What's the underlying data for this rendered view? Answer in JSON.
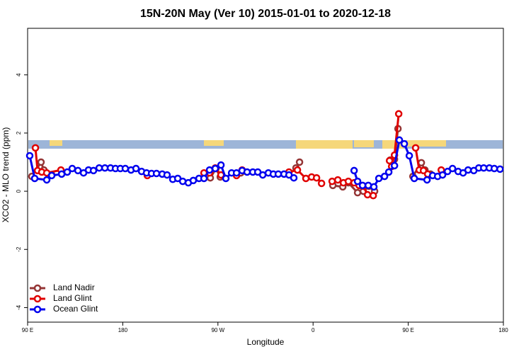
{
  "chart_data": {
    "type": "line",
    "title": "15N-20N May (Ver 10)   2015-01-01 to 2020-12-18",
    "x_label": "Longitude",
    "y_label": "XCO2 - MLO trend (ppm)",
    "xlim": [
      90,
      540
    ],
    "xticks": [
      {
        "value": 90,
        "label": "90 E"
      },
      180,
      {
        "value": 270,
        "label": "90 W"
      },
      {
        "value": 360,
        "label": "0"
      },
      {
        "value": 450,
        "label": "90 E"
      },
      {
        "value": 540,
        "label": "180"
      }
    ],
    "ylim": [
      -4.5,
      5.6
    ],
    "yticks": [
      -4,
      -2,
      0,
      2,
      4
    ],
    "legend": "bottom-left",
    "series": [
      {
        "name": "Land Nadir",
        "color": "#943535",
        "x": [
          94.0,
          102.7,
          105.4,
          112.8,
          190,
          262.8,
          268.2,
          272.2,
          282,
          291.6,
          320,
          343.8,
          347.2,
          360,
          378.7,
          388.1,
          393.4,
          402.1,
          407.5,
          412.8,
          418.2,
          425,
          432.9,
          437.0,
          440.3,
          447,
          454.4,
          462.4,
          465.8,
          471.1
        ],
        "values": [
          0.51,
          1.0,
          0.73,
          0.56,
          null,
          0.46,
          0.78,
          0.49,
          null,
          0.63,
          null,
          0.8,
          1.0,
          null,
          0.2,
          0.15,
          0.29,
          -0.05,
          0.0,
          0.17,
          0.0,
          null,
          1.07,
          1.1,
          2.15,
          null,
          0.51,
          0.98,
          0.73,
          0.59
        ]
      },
      {
        "name": "Land Glint",
        "color": "#e00000",
        "x": [
          97.4,
          99.4,
          103.4,
          108.1,
          121.5,
          160,
          203.2,
          230,
          256.8,
          262.1,
          267.5,
          272.9,
          280,
          287.6,
          292.9,
          315,
          337.2,
          345.2,
          353.2,
          358.6,
          363.3,
          368.0,
          373,
          378.0,
          383.4,
          388.7,
          393.4,
          398.8,
          403.5,
          407.5,
          411.5,
          416.9,
          425,
          432.3,
          434.3,
          437.0,
          441.0,
          449,
          457.0,
          460.4,
          464.4,
          468.4,
          475,
          481.2
        ],
        "values": [
          1.49,
          0.71,
          0.66,
          0.63,
          0.73,
          null,
          0.54,
          null,
          0.63,
          0.63,
          0.8,
          0.56,
          null,
          0.54,
          0.73,
          null,
          0.66,
          0.73,
          0.44,
          0.49,
          0.46,
          0.27,
          null,
          0.34,
          0.39,
          0.29,
          0.34,
          0.29,
          0.2,
          0.17,
          -0.12,
          -0.15,
          null,
          1.05,
          0.85,
          1.24,
          2.66,
          null,
          1.49,
          0.73,
          0.71,
          0.59,
          null,
          0.73
        ]
      },
      {
        "name": "Ocean Glint",
        "color": "#0000ee",
        "x": [
          92.0,
          96.7,
          108.1,
          112.8,
          122.2,
          127.5,
          132.2,
          137.6,
          142.9,
          147.6,
          152.3,
          157.7,
          163.1,
          168.4,
          173.1,
          177.7,
          182.4,
          187.8,
          192.5,
          197.8,
          202.5,
          207.2,
          211.9,
          217.3,
          221.9,
          227.3,
          232.0,
          236.7,
          242.0,
          246.7,
          252.1,
          256.8,
          262.1,
          267.5,
          272.9,
          277.5,
          282.9,
          287.6,
          292.9,
          297.6,
          303.0,
          307.7,
          312.4,
          317.7,
          322.4,
          327.1,
          332.5,
          337.2,
          341.8,
          370,
          398.8,
          402.1,
          406.8,
          412.2,
          417.5,
          422.2,
          427.6,
          431.6,
          437.0,
          441.6,
          446.3,
          451.0,
          455.7,
          467.8,
          473.1,
          477.8,
          482.5,
          487.2,
          491.9,
          497.2,
          501.9,
          506.6,
          512.0,
          516.7,
          521.4,
          526.7,
          531.4,
          536.8
        ],
        "values": [
          1.22,
          0.44,
          0.39,
          0.54,
          0.59,
          0.66,
          0.78,
          0.71,
          0.63,
          0.73,
          0.71,
          0.8,
          0.8,
          0.8,
          0.78,
          0.78,
          0.78,
          0.73,
          0.78,
          0.68,
          0.63,
          0.61,
          0.61,
          0.59,
          0.56,
          0.41,
          0.44,
          0.34,
          0.29,
          0.37,
          0.44,
          0.44,
          0.73,
          0.78,
          0.9,
          0.44,
          0.63,
          0.63,
          0.71,
          0.66,
          0.66,
          0.66,
          0.56,
          0.63,
          0.59,
          0.59,
          0.59,
          0.56,
          0.46,
          null,
          0.71,
          0.34,
          0.2,
          0.2,
          0.15,
          0.44,
          0.51,
          0.66,
          0.88,
          1.76,
          1.63,
          1.22,
          0.44,
          0.39,
          0.54,
          0.51,
          0.56,
          0.68,
          0.78,
          0.68,
          0.63,
          0.73,
          0.71,
          0.8,
          0.8,
          0.8,
          0.78,
          0.76
        ]
      }
    ]
  }
}
